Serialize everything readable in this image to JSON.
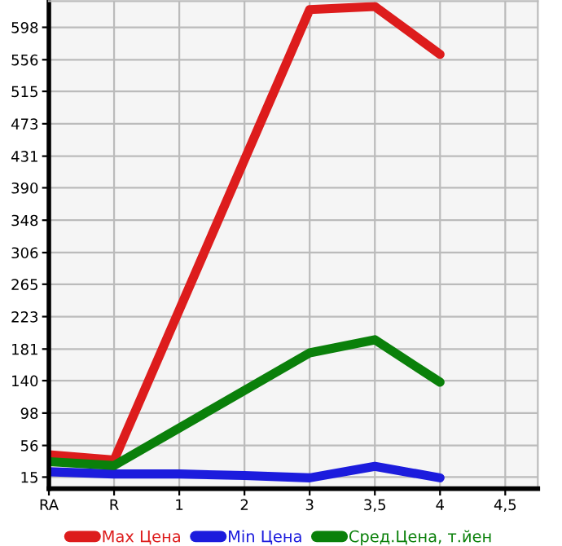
{
  "chart_data": {
    "type": "line",
    "categories": [
      "RA",
      "R",
      "1",
      "2",
      "3",
      "3,5",
      "4",
      "4,5"
    ],
    "series": [
      {
        "name": "Max Цена",
        "color": "#dd1c1c",
        "values": [
          44,
          37,
          null,
          null,
          621,
          625,
          563,
          null
        ]
      },
      {
        "name": "Min Цена",
        "color": "#1c1cdd",
        "values": [
          22,
          19,
          19,
          17,
          14,
          29,
          14,
          null
        ]
      },
      {
        "name": "Сред.Цена, т.йен",
        "color": "#0a800a",
        "values": [
          35,
          30,
          null,
          null,
          176,
          193,
          138,
          null
        ]
      }
    ],
    "ylim": [
      0,
      632
    ],
    "yticks": [
      15,
      56,
      98,
      140,
      181,
      223,
      265,
      306,
      348,
      390,
      431,
      473,
      515,
      556,
      598
    ],
    "grid": true,
    "legend": "bottom",
    "marker": "none",
    "line_style": "solid"
  }
}
